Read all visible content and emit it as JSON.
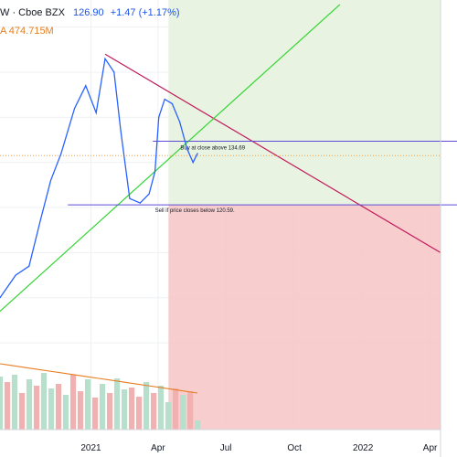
{
  "header": {
    "symbol_tail": "W · Cboe BZX",
    "price": "126.90",
    "change": "+1.47 (+1.17%)",
    "volume_prefix": "A",
    "volume": "474.715M"
  },
  "colors": {
    "price_line": "#2962ff",
    "green_zone": "#e8f3e2",
    "red_zone": "#f7c4c4",
    "resistance_line": "#c2185b",
    "support_line": "#33d633",
    "level_line": "#5c4bd6",
    "dotted_last": "#f0a04b",
    "volume_up": "#b7dfcc",
    "volume_down": "#f2b1b1",
    "volume_ma": "#e67e22",
    "grid": "#eef0f3",
    "axis_text": "#131722"
  },
  "chart_data": {
    "type": "line",
    "title": "",
    "xlabel": "",
    "ylabel": "",
    "x_tick_labels": [
      "2021",
      "Apr",
      "Jul",
      "Oct",
      "2022",
      "Apr"
    ],
    "x_tick_dates": [
      "2021-01-01",
      "2021-04-01",
      "2021-07-01",
      "2021-10-01",
      "2022-01-01",
      "2022-04-01"
    ],
    "xlim": [
      "2020-09-01",
      "2022-04-15"
    ],
    "ylim": [
      88,
      166
    ],
    "grid": true,
    "series": [
      {
        "values": [
          {
            "x": "2020-09-01",
            "y": 100
          },
          {
            "x": "2020-09-22",
            "y": 105
          },
          {
            "x": "2020-10-10",
            "y": 107
          },
          {
            "x": "2020-10-25",
            "y": 117
          },
          {
            "x": "2020-11-08",
            "y": 126
          },
          {
            "x": "2020-11-22",
            "y": 132
          },
          {
            "x": "2020-12-10",
            "y": 142
          },
          {
            "x": "2020-12-25",
            "y": 147
          },
          {
            "x": "2021-01-08",
            "y": 141
          },
          {
            "x": "2021-01-20",
            "y": 153
          },
          {
            "x": "2021-02-01",
            "y": 150
          },
          {
            "x": "2021-02-10",
            "y": 137
          },
          {
            "x": "2021-02-22",
            "y": 122
          },
          {
            "x": "2021-03-08",
            "y": 121
          },
          {
            "x": "2021-03-20",
            "y": 123
          },
          {
            "x": "2021-03-28",
            "y": 128
          },
          {
            "x": "2021-04-02",
            "y": 140
          },
          {
            "x": "2021-04-10",
            "y": 144
          },
          {
            "x": "2021-04-20",
            "y": 143
          },
          {
            "x": "2021-04-30",
            "y": 139
          },
          {
            "x": "2021-05-10",
            "y": 133
          },
          {
            "x": "2021-05-18",
            "y": 130
          },
          {
            "x": "2021-05-24",
            "y": 132
          }
        ]
      }
    ],
    "volume": {
      "up_count": 16,
      "down_count": 12
    },
    "annotations": [
      {
        "text": "Buy at close above 134.69",
        "level": 134.69,
        "kind": "horizontal"
      },
      {
        "text": "Sell if price closes below 120.59.",
        "level": 120.59,
        "kind": "horizontal"
      }
    ],
    "trendlines": [
      {
        "kind": "resistance",
        "from": {
          "x": "2021-01-20",
          "y": 154
        },
        "to": {
          "x": "2022-04-15",
          "y": 110
        }
      },
      {
        "kind": "support",
        "from": {
          "x": "2020-09-01",
          "y": 97
        },
        "to": {
          "x": "2021-12-01",
          "y": 165
        }
      }
    ],
    "last_value_line": 131.5
  }
}
